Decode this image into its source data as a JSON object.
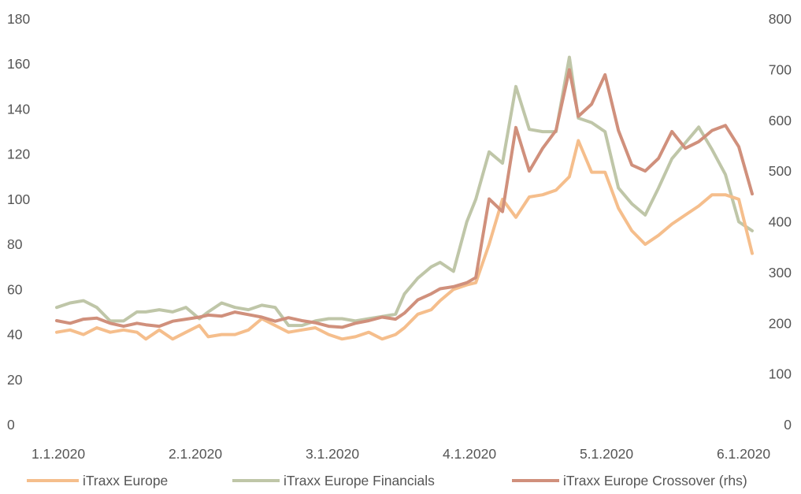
{
  "chart_data": {
    "type": "line",
    "title": "",
    "xlabel": "",
    "ylabel": "",
    "grid": false,
    "legend_position": "bottom",
    "x_tick_labels": [
      "1.1.2020",
      "2.1.2020",
      "3.1.2020",
      "4.1.2020",
      "5.1.2020",
      "6.1.2020"
    ],
    "y_left": {
      "min": 0,
      "max": 180,
      "ticks": [
        "0",
        "20",
        "40",
        "60",
        "80",
        "100",
        "120",
        "140",
        "160",
        "180"
      ]
    },
    "y_right": {
      "min": 0,
      "max": 800,
      "ticks": [
        "0",
        "100",
        "200",
        "300",
        "400",
        "500",
        "600",
        "700",
        "800"
      ]
    },
    "x_range": [
      "2020-01-01",
      "2020-06-05"
    ],
    "series": [
      {
        "name": "iTraxx Europe",
        "axis": "left",
        "color": "#F5BE8C",
        "points": [
          [
            "2020-01-01",
            41
          ],
          [
            "2020-01-04",
            42
          ],
          [
            "2020-01-07",
            40
          ],
          [
            "2020-01-10",
            43
          ],
          [
            "2020-01-13",
            41
          ],
          [
            "2020-01-16",
            42
          ],
          [
            "2020-01-19",
            41
          ],
          [
            "2020-01-21",
            38
          ],
          [
            "2020-01-24",
            42
          ],
          [
            "2020-01-27",
            38
          ],
          [
            "2020-01-30",
            41
          ],
          [
            "2020-02-02",
            44
          ],
          [
            "2020-02-04",
            39
          ],
          [
            "2020-02-07",
            40
          ],
          [
            "2020-02-10",
            40
          ],
          [
            "2020-02-13",
            42
          ],
          [
            "2020-02-16",
            47
          ],
          [
            "2020-02-19",
            44
          ],
          [
            "2020-02-22",
            41
          ],
          [
            "2020-02-25",
            42
          ],
          [
            "2020-02-28",
            43
          ],
          [
            "2020-03-02",
            40
          ],
          [
            "2020-03-05",
            38
          ],
          [
            "2020-03-08",
            39
          ],
          [
            "2020-03-11",
            41
          ],
          [
            "2020-03-14",
            38
          ],
          [
            "2020-03-17",
            40
          ],
          [
            "2020-03-19",
            43
          ],
          [
            "2020-03-22",
            49
          ],
          [
            "2020-03-25",
            51
          ],
          [
            "2020-03-27",
            55
          ],
          [
            "2020-03-30",
            60
          ],
          [
            "2020-04-02",
            62
          ],
          [
            "2020-04-04",
            63
          ],
          [
            "2020-04-07",
            80
          ],
          [
            "2020-04-10",
            100
          ],
          [
            "2020-04-13",
            92
          ],
          [
            "2020-04-16",
            101
          ],
          [
            "2020-04-19",
            102
          ],
          [
            "2020-04-22",
            104
          ],
          [
            "2020-04-25",
            110
          ],
          [
            "2020-04-27",
            126
          ],
          [
            "2020-04-30",
            112
          ],
          [
            "2020-05-03",
            112
          ],
          [
            "2020-05-06",
            96
          ],
          [
            "2020-05-09",
            86
          ],
          [
            "2020-05-12",
            80
          ],
          [
            "2020-05-15",
            84
          ],
          [
            "2020-05-18",
            89
          ],
          [
            "2020-05-21",
            93
          ],
          [
            "2020-05-24",
            97
          ],
          [
            "2020-05-27",
            102
          ],
          [
            "2020-05-30",
            102
          ],
          [
            "2020-06-02",
            100
          ],
          [
            "2020-06-05",
            76
          ]
        ]
      },
      {
        "name": "iTraxx Europe Financials",
        "axis": "left",
        "color": "#BFC6A8",
        "points": [
          [
            "2020-01-01",
            52
          ],
          [
            "2020-01-04",
            54
          ],
          [
            "2020-01-07",
            55
          ],
          [
            "2020-01-10",
            52
          ],
          [
            "2020-01-13",
            46
          ],
          [
            "2020-01-16",
            46
          ],
          [
            "2020-01-19",
            50
          ],
          [
            "2020-01-21",
            50
          ],
          [
            "2020-01-24",
            51
          ],
          [
            "2020-01-27",
            50
          ],
          [
            "2020-01-30",
            52
          ],
          [
            "2020-02-02",
            47
          ],
          [
            "2020-02-04",
            50
          ],
          [
            "2020-02-07",
            54
          ],
          [
            "2020-02-10",
            52
          ],
          [
            "2020-02-13",
            51
          ],
          [
            "2020-02-16",
            53
          ],
          [
            "2020-02-19",
            52
          ],
          [
            "2020-02-22",
            44
          ],
          [
            "2020-02-25",
            44
          ],
          [
            "2020-02-28",
            46
          ],
          [
            "2020-03-02",
            47
          ],
          [
            "2020-03-05",
            47
          ],
          [
            "2020-03-08",
            46
          ],
          [
            "2020-03-11",
            47
          ],
          [
            "2020-03-14",
            48
          ],
          [
            "2020-03-17",
            49
          ],
          [
            "2020-03-19",
            58
          ],
          [
            "2020-03-22",
            65
          ],
          [
            "2020-03-25",
            70
          ],
          [
            "2020-03-27",
            72
          ],
          [
            "2020-03-30",
            68
          ],
          [
            "2020-04-02",
            90
          ],
          [
            "2020-04-04",
            100
          ],
          [
            "2020-04-07",
            121
          ],
          [
            "2020-04-10",
            116
          ],
          [
            "2020-04-13",
            150
          ],
          [
            "2020-04-16",
            131
          ],
          [
            "2020-04-19",
            130
          ],
          [
            "2020-04-22",
            130
          ],
          [
            "2020-04-25",
            163
          ],
          [
            "2020-04-27",
            136
          ],
          [
            "2020-04-30",
            134
          ],
          [
            "2020-05-03",
            130
          ],
          [
            "2020-05-06",
            105
          ],
          [
            "2020-05-09",
            98
          ],
          [
            "2020-05-12",
            93
          ],
          [
            "2020-05-15",
            105
          ],
          [
            "2020-05-18",
            118
          ],
          [
            "2020-05-21",
            125
          ],
          [
            "2020-05-24",
            132
          ],
          [
            "2020-05-27",
            122
          ],
          [
            "2020-05-30",
            111
          ],
          [
            "2020-06-02",
            90
          ],
          [
            "2020-06-05",
            86
          ]
        ]
      },
      {
        "name": "iTraxx Europe Crossover (rhs)",
        "axis": "right",
        "color": "#D0907C",
        "points": [
          [
            "2020-01-01",
            205
          ],
          [
            "2020-01-04",
            200
          ],
          [
            "2020-01-07",
            208
          ],
          [
            "2020-01-10",
            210
          ],
          [
            "2020-01-13",
            200
          ],
          [
            "2020-01-16",
            194
          ],
          [
            "2020-01-19",
            200
          ],
          [
            "2020-01-21",
            197
          ],
          [
            "2020-01-24",
            194
          ],
          [
            "2020-01-27",
            204
          ],
          [
            "2020-01-30",
            208
          ],
          [
            "2020-02-02",
            212
          ],
          [
            "2020-02-04",
            216
          ],
          [
            "2020-02-07",
            214
          ],
          [
            "2020-02-10",
            222
          ],
          [
            "2020-02-13",
            217
          ],
          [
            "2020-02-16",
            212
          ],
          [
            "2020-02-19",
            204
          ],
          [
            "2020-02-22",
            211
          ],
          [
            "2020-02-25",
            205
          ],
          [
            "2020-02-28",
            201
          ],
          [
            "2020-03-02",
            194
          ],
          [
            "2020-03-05",
            192
          ],
          [
            "2020-03-08",
            200
          ],
          [
            "2020-03-11",
            205
          ],
          [
            "2020-03-14",
            212
          ],
          [
            "2020-03-17",
            208
          ],
          [
            "2020-03-19",
            220
          ],
          [
            "2020-03-22",
            246
          ],
          [
            "2020-03-25",
            258
          ],
          [
            "2020-03-27",
            268
          ],
          [
            "2020-03-30",
            272
          ],
          [
            "2020-04-02",
            280
          ],
          [
            "2020-04-04",
            290
          ],
          [
            "2020-04-07",
            445
          ],
          [
            "2020-04-10",
            420
          ],
          [
            "2020-04-13",
            586
          ],
          [
            "2020-04-16",
            500
          ],
          [
            "2020-04-19",
            545
          ],
          [
            "2020-04-22",
            580
          ],
          [
            "2020-04-25",
            700
          ],
          [
            "2020-04-27",
            608
          ],
          [
            "2020-04-30",
            632
          ],
          [
            "2020-05-03",
            690
          ],
          [
            "2020-05-06",
            580
          ],
          [
            "2020-05-09",
            512
          ],
          [
            "2020-05-12",
            500
          ],
          [
            "2020-05-15",
            525
          ],
          [
            "2020-05-18",
            578
          ],
          [
            "2020-05-21",
            545
          ],
          [
            "2020-05-24",
            558
          ],
          [
            "2020-05-27",
            580
          ],
          [
            "2020-05-30",
            590
          ],
          [
            "2020-06-02",
            548
          ],
          [
            "2020-06-05",
            455
          ]
        ]
      }
    ]
  }
}
